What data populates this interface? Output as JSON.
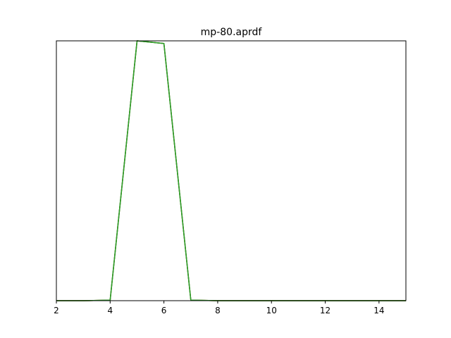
{
  "chart_data": {
    "type": "line",
    "title": "mp-80.aprdf",
    "xlabel": "",
    "ylabel": "",
    "xlim": [
      2,
      15
    ],
    "ylim": [
      0,
      1.0
    ],
    "x_ticks": [
      2,
      4,
      6,
      8,
      10,
      12,
      14
    ],
    "y_ticks_visible": false,
    "grid": false,
    "legend": "none",
    "series": [
      {
        "color": "#ff7f0e",
        "x": [
          2,
          3,
          4,
          5,
          6,
          7,
          8,
          9,
          10,
          11,
          12,
          13,
          14,
          15
        ],
        "y": [
          0,
          0,
          0.002,
          1.0,
          0.99,
          0.002,
          0,
          0,
          0,
          0,
          0,
          0,
          0,
          0
        ]
      },
      {
        "color": "#1a5c1a",
        "x": [
          2,
          3,
          4,
          5,
          6,
          7,
          8,
          9,
          10,
          11,
          12,
          13,
          14,
          15
        ],
        "y": [
          0,
          0,
          0.002,
          1.0,
          0.99,
          0.002,
          0,
          0,
          0,
          0,
          0,
          0,
          0,
          0
        ]
      },
      {
        "color": "#2ca02c",
        "x": [
          2,
          3,
          4,
          5,
          6,
          7,
          8,
          9,
          10,
          11,
          12,
          13,
          14,
          15
        ],
        "y": [
          0,
          0,
          0.002,
          1.0,
          0.99,
          0.002,
          0,
          0,
          0,
          0,
          0,
          0,
          0,
          0
        ]
      }
    ]
  }
}
